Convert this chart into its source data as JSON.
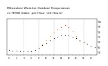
{
  "title": "Milwaukee Weather Outdoor Temperature",
  "subtitle": "vs THSW Index  per Hour  (24 Hours)",
  "hours": [
    0,
    1,
    2,
    3,
    4,
    5,
    6,
    7,
    8,
    9,
    10,
    11,
    12,
    13,
    14,
    15,
    16,
    17,
    18,
    19,
    20,
    21,
    22,
    23
  ],
  "temp": [
    44,
    43,
    43,
    42,
    42,
    42,
    42,
    44,
    48,
    53,
    58,
    63,
    67,
    70,
    72,
    73,
    72,
    70,
    67,
    63,
    59,
    56,
    52,
    49
  ],
  "thsw": [
    null,
    null,
    null,
    null,
    null,
    null,
    null,
    null,
    null,
    55,
    63,
    71,
    78,
    84,
    89,
    93,
    88,
    80,
    71,
    62,
    null,
    null,
    null,
    null
  ],
  "temp_color": "#000000",
  "thsw_orange_color": "#ff8800",
  "thsw_red_color": "#ff0000",
  "thsw_red_threshold": 88,
  "bg_color": "#ffffff",
  "grid_color": "#999999",
  "ylim": [
    35,
    105
  ],
  "ytick_values": [
    40,
    50,
    60,
    70,
    80,
    90,
    100
  ],
  "grid_hours": [
    4,
    8,
    12,
    16,
    20
  ],
  "marker_size": 0.8,
  "title_fontsize": 3.2,
  "tick_fontsize": 2.0
}
